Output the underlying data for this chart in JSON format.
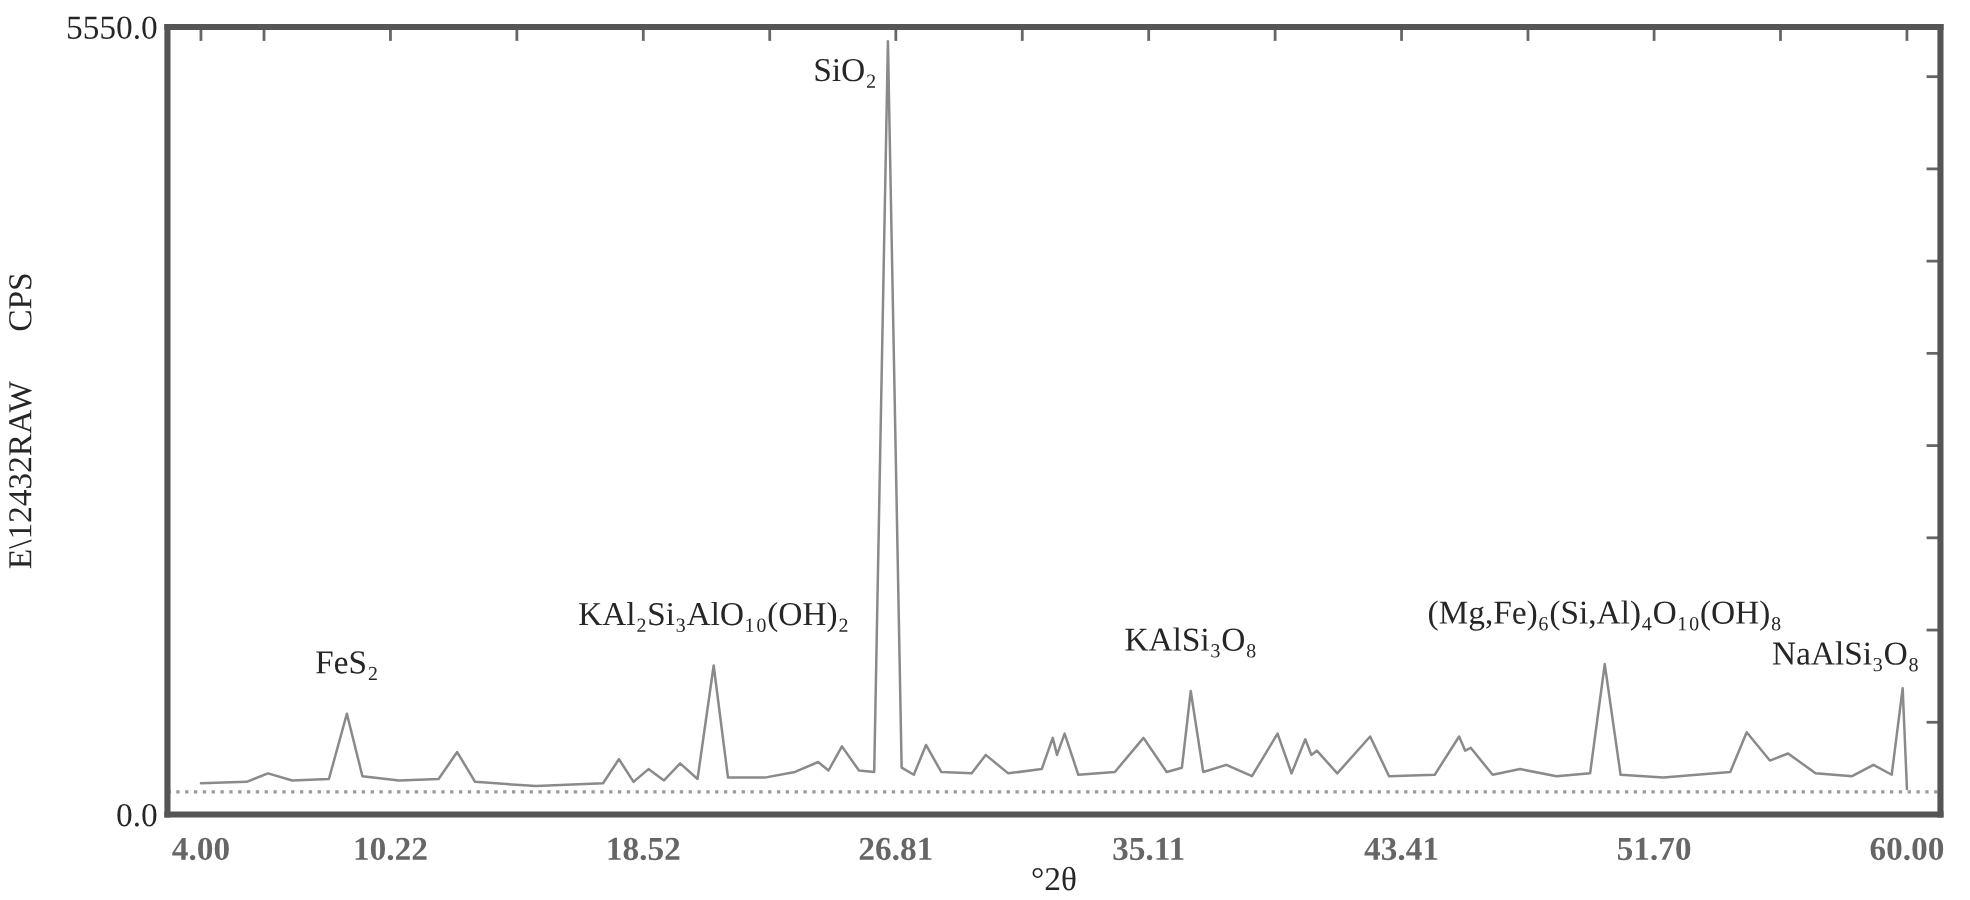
{
  "chart_data": {
    "type": "line",
    "xlabel": "°2θ",
    "ylabel": "E\\12432RAW      CPS",
    "x": [
      4.0,
      5.5,
      6.2,
      7.0,
      8.2,
      8.79,
      9.3,
      10.5,
      11.8,
      12.41,
      13.0,
      15.0,
      17.2,
      17.72,
      18.2,
      18.69,
      19.2,
      19.73,
      20.3,
      20.83,
      21.3,
      22.5,
      23.5,
      24.26,
      24.6,
      25.04,
      25.6,
      26.1,
      26.55,
      27.0,
      27.4,
      27.8,
      28.3,
      29.3,
      29.76,
      30.5,
      31.6,
      31.96,
      32.1,
      32.35,
      32.8,
      34.0,
      34.94,
      35.7,
      36.2,
      36.49,
      36.9,
      37.66,
      38.5,
      39.34,
      39.8,
      40.25,
      40.45,
      40.63,
      41.3,
      42.38,
      43.0,
      44.5,
      45.3,
      45.5,
      45.68,
      46.4,
      47.3,
      48.5,
      49.6,
      50.08,
      50.6,
      52.0,
      54.2,
      54.74,
      55.5,
      56.1,
      57.0,
      58.2,
      58.9,
      59.5,
      59.86,
      60.0
    ],
    "series": [
      {
        "color": "#8a8a8a",
        "values": [
          220,
          230,
          290,
          240,
          250,
          710,
          270,
          240,
          250,
          440,
          230,
          200,
          220,
          390,
          230,
          320,
          240,
          360,
          250,
          1050,
          260,
          260,
          300,
          370,
          310,
          480,
          310,
          300,
          5450,
          330,
          280,
          490,
          300,
          290,
          420,
          290,
          320,
          540,
          420,
          570,
          280,
          300,
          540,
          300,
          330,
          870,
          300,
          350,
          270,
          570,
          290,
          530,
          420,
          450,
          290,
          550,
          270,
          280,
          550,
          450,
          470,
          280,
          320,
          270,
          290,
          1060,
          280,
          260,
          300,
          580,
          380,
          430,
          290,
          270,
          350,
          280,
          890,
          180
        ]
      }
    ],
    "xlim": [
      2.9,
      61.1
    ],
    "ylim": [
      0,
      5550
    ],
    "xticks": [
      {
        "value": 4.0,
        "label": "4.00"
      },
      {
        "value": 6.07,
        "label": null
      },
      {
        "value": 10.22,
        "label": "10.22"
      },
      {
        "value": 14.37,
        "label": null
      },
      {
        "value": 18.52,
        "label": "18.52"
      },
      {
        "value": 22.67,
        "label": null
      },
      {
        "value": 26.81,
        "label": "26.81"
      },
      {
        "value": 30.96,
        "label": null
      },
      {
        "value": 35.11,
        "label": "35.11"
      },
      {
        "value": 39.26,
        "label": null
      },
      {
        "value": 43.41,
        "label": "43.41"
      },
      {
        "value": 47.56,
        "label": null
      },
      {
        "value": 51.7,
        "label": "51.70"
      },
      {
        "value": 55.85,
        "label": null
      },
      {
        "value": 60.0,
        "label": "60.00"
      }
    ],
    "yticks": [
      {
        "value": 0,
        "label": "0.0"
      },
      {
        "value": 650,
        "label": null
      },
      {
        "value": 1300,
        "label": null
      },
      {
        "value": 1950,
        "label": null
      },
      {
        "value": 2600,
        "label": null
      },
      {
        "value": 3250,
        "label": null
      },
      {
        "value": 3900,
        "label": null
      },
      {
        "value": 4550,
        "label": null
      },
      {
        "value": 5200,
        "label": null
      },
      {
        "value": 5550,
        "label": "5550.0"
      }
    ],
    "ref_lines": [
      {
        "axis": "y",
        "value": 160,
        "color": "#9a9a9a",
        "line_style": "dotted"
      }
    ],
    "annotations": [
      {
        "text": "FeS₂",
        "x": 8.79,
        "y": 710
      },
      {
        "text": "KAl₂Si₃AlO₁₀(OH)₂",
        "x": 20.83,
        "y": 1050
      },
      {
        "text": "SiO₂",
        "x": 26.55,
        "y": 5450
      },
      {
        "text": "KAlSi₃O₈",
        "x": 36.49,
        "y": 870
      },
      {
        "text": "(Mg,Fe)₆(Si,Al)₄O₁₀(OH)₈",
        "x": 50.08,
        "y": 1060
      },
      {
        "text": "NaAlSi₃O₈",
        "x": 59.86,
        "y": 890
      }
    ],
    "grid": false,
    "legend": false,
    "line_style": "solid",
    "marker": "none"
  }
}
